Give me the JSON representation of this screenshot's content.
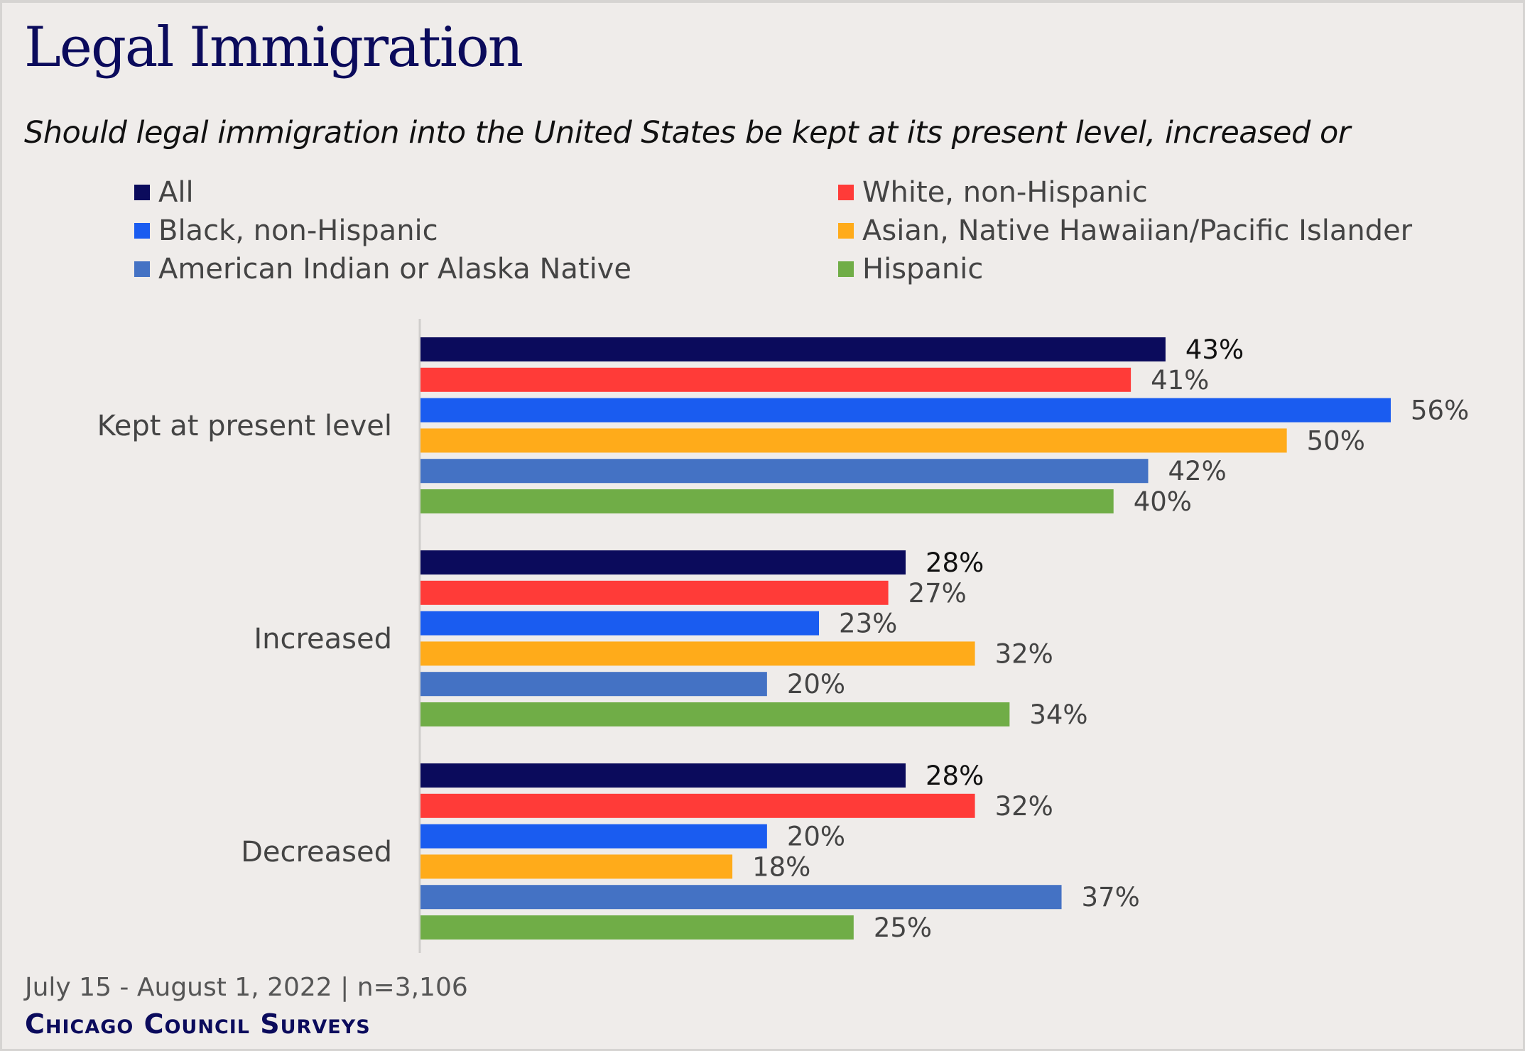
{
  "header": {
    "title": "Legal Immigration",
    "subtitle": "Should legal immigration into the United States be kept at its present level, increased or"
  },
  "footer": {
    "date_sample": "July 15 - August 1, 2022 | n=3,106",
    "brand": "Chicago Council Surveys"
  },
  "chart_data": {
    "type": "bar",
    "orientation": "horizontal",
    "title": "Legal Immigration",
    "subtitle": "Should legal immigration into the United States be kept at its present level, increased or",
    "categories": [
      "Kept at present level",
      "Increased",
      "Decreased"
    ],
    "series": [
      {
        "name": "All",
        "color": "#0b0b5c",
        "values": [
          43,
          28,
          28
        ]
      },
      {
        "name": "White, non-Hispanic",
        "color": "#ff3b38",
        "values": [
          41,
          27,
          32
        ]
      },
      {
        "name": "Black, non-Hispanic",
        "color": "#1a5cf0",
        "values": [
          56,
          23,
          20
        ]
      },
      {
        "name": "Asian, Native Hawaiian/Pacific Islander",
        "color": "#ffab1a",
        "values": [
          50,
          32,
          18
        ]
      },
      {
        "name": "American Indian or Alaska Native",
        "color": "#4472c4",
        "values": [
          42,
          20,
          37
        ]
      },
      {
        "name": "Hispanic",
        "color": "#70ad47",
        "values": [
          40,
          34,
          25
        ]
      }
    ],
    "value_format": "{v}%",
    "xlim": [
      0,
      56
    ],
    "grid": false,
    "legend": "top"
  }
}
